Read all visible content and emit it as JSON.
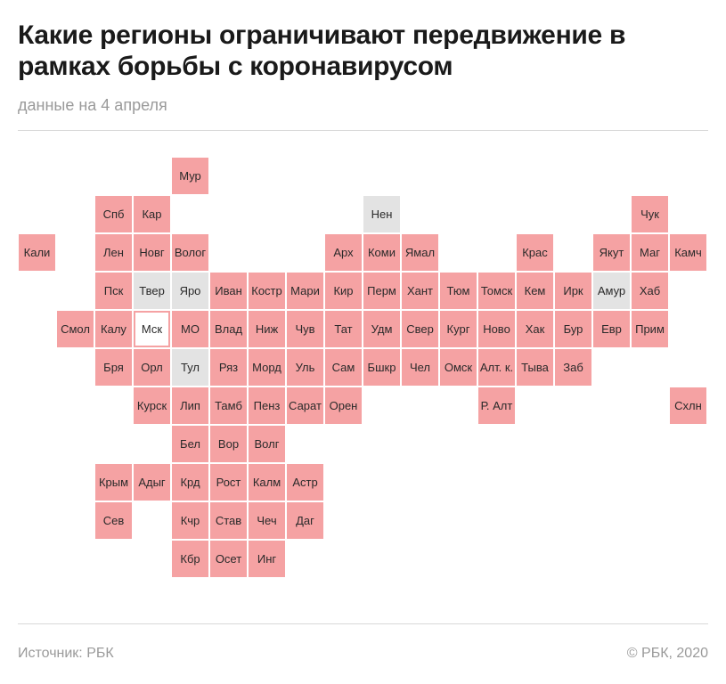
{
  "header": {
    "title": "Какие регионы ограничивают передвижение в рамках борьбы с коронавирусом",
    "subtitle": "данные на 4 апреля"
  },
  "colors": {
    "restricted": "#f5a2a3",
    "no_restriction": "#e3e3e3",
    "highlight_border": "#f5a2a3"
  },
  "regions": [
    {
      "label": "Мур",
      "row": 0,
      "col": 4,
      "status": "restricted"
    },
    {
      "label": "Спб",
      "row": 1,
      "col": 2,
      "status": "restricted"
    },
    {
      "label": "Кар",
      "row": 1,
      "col": 3,
      "status": "restricted"
    },
    {
      "label": "Нен",
      "row": 1,
      "col": 9,
      "status": "open"
    },
    {
      "label": "Чук",
      "row": 1,
      "col": 16,
      "status": "restricted"
    },
    {
      "label": "Кали",
      "row": 2,
      "col": 0,
      "status": "restricted"
    },
    {
      "label": "Лен",
      "row": 2,
      "col": 2,
      "status": "restricted"
    },
    {
      "label": "Новг",
      "row": 2,
      "col": 3,
      "status": "restricted"
    },
    {
      "label": "Волог",
      "row": 2,
      "col": 4,
      "status": "restricted"
    },
    {
      "label": "Арх",
      "row": 2,
      "col": 8,
      "status": "restricted"
    },
    {
      "label": "Коми",
      "row": 2,
      "col": 9,
      "status": "restricted"
    },
    {
      "label": "Ямал",
      "row": 2,
      "col": 10,
      "status": "restricted"
    },
    {
      "label": "Крас",
      "row": 2,
      "col": 13,
      "status": "restricted"
    },
    {
      "label": "Якут",
      "row": 2,
      "col": 15,
      "status": "restricted"
    },
    {
      "label": "Маг",
      "row": 2,
      "col": 16,
      "status": "restricted"
    },
    {
      "label": "Камч",
      "row": 2,
      "col": 17,
      "status": "restricted"
    },
    {
      "label": "Пск",
      "row": 3,
      "col": 2,
      "status": "restricted"
    },
    {
      "label": "Твер",
      "row": 3,
      "col": 3,
      "status": "open"
    },
    {
      "label": "Яро",
      "row": 3,
      "col": 4,
      "status": "open"
    },
    {
      "label": "Иван",
      "row": 3,
      "col": 5,
      "status": "restricted"
    },
    {
      "label": "Костр",
      "row": 3,
      "col": 6,
      "status": "restricted"
    },
    {
      "label": "Мари",
      "row": 3,
      "col": 7,
      "status": "restricted"
    },
    {
      "label": "Кир",
      "row": 3,
      "col": 8,
      "status": "restricted"
    },
    {
      "label": "Перм",
      "row": 3,
      "col": 9,
      "status": "restricted"
    },
    {
      "label": "Хант",
      "row": 3,
      "col": 10,
      "status": "restricted"
    },
    {
      "label": "Тюм",
      "row": 3,
      "col": 11,
      "status": "restricted"
    },
    {
      "label": "Томск",
      "row": 3,
      "col": 12,
      "status": "restricted"
    },
    {
      "label": "Кем",
      "row": 3,
      "col": 13,
      "status": "restricted"
    },
    {
      "label": "Ирк",
      "row": 3,
      "col": 14,
      "status": "restricted"
    },
    {
      "label": "Амур",
      "row": 3,
      "col": 15,
      "status": "open"
    },
    {
      "label": "Хаб",
      "row": 3,
      "col": 16,
      "status": "restricted"
    },
    {
      "label": "Смол",
      "row": 4,
      "col": 1,
      "status": "restricted"
    },
    {
      "label": "Калу",
      "row": 4,
      "col": 2,
      "status": "restricted"
    },
    {
      "label": "Мск",
      "row": 4,
      "col": 3,
      "status": "highlight"
    },
    {
      "label": "МО",
      "row": 4,
      "col": 4,
      "status": "restricted"
    },
    {
      "label": "Влад",
      "row": 4,
      "col": 5,
      "status": "restricted"
    },
    {
      "label": "Ниж",
      "row": 4,
      "col": 6,
      "status": "restricted"
    },
    {
      "label": "Чув",
      "row": 4,
      "col": 7,
      "status": "restricted"
    },
    {
      "label": "Тат",
      "row": 4,
      "col": 8,
      "status": "restricted"
    },
    {
      "label": "Удм",
      "row": 4,
      "col": 9,
      "status": "restricted"
    },
    {
      "label": "Свер",
      "row": 4,
      "col": 10,
      "status": "restricted"
    },
    {
      "label": "Кург",
      "row": 4,
      "col": 11,
      "status": "restricted"
    },
    {
      "label": "Ново",
      "row": 4,
      "col": 12,
      "status": "restricted"
    },
    {
      "label": "Хак",
      "row": 4,
      "col": 13,
      "status": "restricted"
    },
    {
      "label": "Бур",
      "row": 4,
      "col": 14,
      "status": "restricted"
    },
    {
      "label": "Евр",
      "row": 4,
      "col": 15,
      "status": "restricted"
    },
    {
      "label": "Прим",
      "row": 4,
      "col": 16,
      "status": "restricted"
    },
    {
      "label": "Бря",
      "row": 5,
      "col": 2,
      "status": "restricted"
    },
    {
      "label": "Орл",
      "row": 5,
      "col": 3,
      "status": "restricted"
    },
    {
      "label": "Тул",
      "row": 5,
      "col": 4,
      "status": "open"
    },
    {
      "label": "Ряз",
      "row": 5,
      "col": 5,
      "status": "restricted"
    },
    {
      "label": "Морд",
      "row": 5,
      "col": 6,
      "status": "restricted"
    },
    {
      "label": "Уль",
      "row": 5,
      "col": 7,
      "status": "restricted"
    },
    {
      "label": "Сам",
      "row": 5,
      "col": 8,
      "status": "restricted"
    },
    {
      "label": "Бшкр",
      "row": 5,
      "col": 9,
      "status": "restricted"
    },
    {
      "label": "Чел",
      "row": 5,
      "col": 10,
      "status": "restricted"
    },
    {
      "label": "Омск",
      "row": 5,
      "col": 11,
      "status": "restricted"
    },
    {
      "label": "Алт. к.",
      "row": 5,
      "col": 12,
      "status": "restricted"
    },
    {
      "label": "Тыва",
      "row": 5,
      "col": 13,
      "status": "restricted"
    },
    {
      "label": "Заб",
      "row": 5,
      "col": 14,
      "status": "restricted"
    },
    {
      "label": "Курск",
      "row": 6,
      "col": 3,
      "status": "restricted"
    },
    {
      "label": "Лип",
      "row": 6,
      "col": 4,
      "status": "restricted"
    },
    {
      "label": "Тамб",
      "row": 6,
      "col": 5,
      "status": "restricted"
    },
    {
      "label": "Пенз",
      "row": 6,
      "col": 6,
      "status": "restricted"
    },
    {
      "label": "Сарат",
      "row": 6,
      "col": 7,
      "status": "restricted"
    },
    {
      "label": "Орен",
      "row": 6,
      "col": 8,
      "status": "restricted"
    },
    {
      "label": "Р. Алт",
      "row": 6,
      "col": 12,
      "status": "restricted"
    },
    {
      "label": "Схлн",
      "row": 6,
      "col": 17,
      "status": "restricted"
    },
    {
      "label": "Бел",
      "row": 7,
      "col": 4,
      "status": "restricted"
    },
    {
      "label": "Вор",
      "row": 7,
      "col": 5,
      "status": "restricted"
    },
    {
      "label": "Волг",
      "row": 7,
      "col": 6,
      "status": "restricted"
    },
    {
      "label": "Крым",
      "row": 8,
      "col": 2,
      "status": "restricted"
    },
    {
      "label": "Адыг",
      "row": 8,
      "col": 3,
      "status": "restricted"
    },
    {
      "label": "Крд",
      "row": 8,
      "col": 4,
      "status": "restricted"
    },
    {
      "label": "Рост",
      "row": 8,
      "col": 5,
      "status": "restricted"
    },
    {
      "label": "Калм",
      "row": 8,
      "col": 6,
      "status": "restricted"
    },
    {
      "label": "Астр",
      "row": 8,
      "col": 7,
      "status": "restricted"
    },
    {
      "label": "Сев",
      "row": 9,
      "col": 2,
      "status": "restricted"
    },
    {
      "label": "Кчр",
      "row": 9,
      "col": 4,
      "status": "restricted"
    },
    {
      "label": "Став",
      "row": 9,
      "col": 5,
      "status": "restricted"
    },
    {
      "label": "Чеч",
      "row": 9,
      "col": 6,
      "status": "restricted"
    },
    {
      "label": "Даг",
      "row": 9,
      "col": 7,
      "status": "restricted"
    },
    {
      "label": "Кбр",
      "row": 10,
      "col": 4,
      "status": "restricted"
    },
    {
      "label": "Осет",
      "row": 10,
      "col": 5,
      "status": "restricted"
    },
    {
      "label": "Инг",
      "row": 10,
      "col": 6,
      "status": "restricted"
    }
  ],
  "footer": {
    "source": "Источник: РБК",
    "copyright": "© РБК, 2020"
  }
}
